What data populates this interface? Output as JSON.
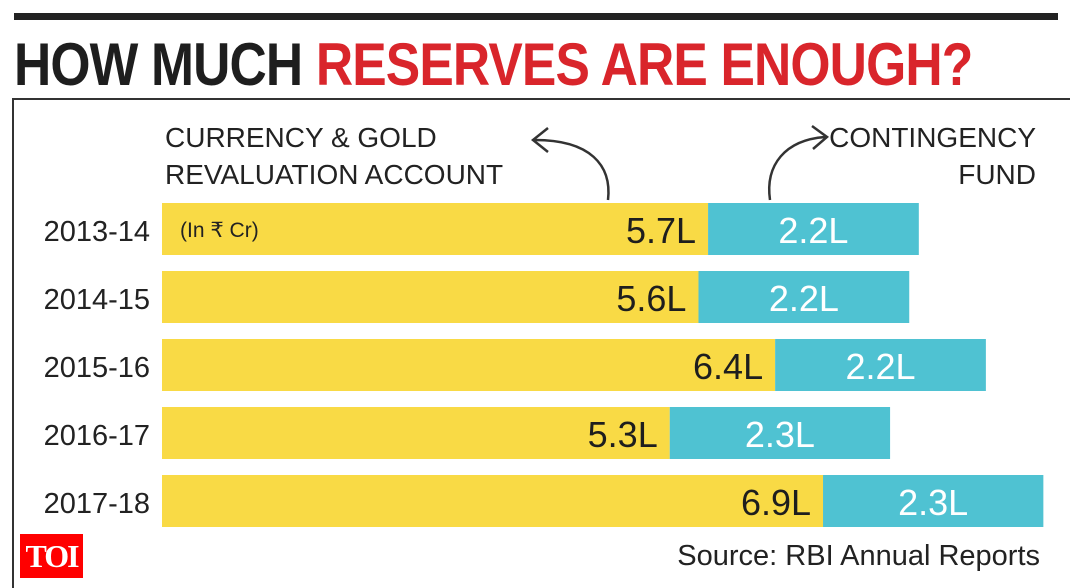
{
  "chart_data": {
    "type": "bar",
    "stacked": true,
    "orientation": "horizontal",
    "title": "HOW MUCH RESERVES ARE ENOUGH?",
    "title_parts": {
      "black": "HOW MUCH",
      "red": "RESERVES ARE ENOUGH?"
    },
    "unit_note": "(In ₹ Cr)",
    "categories": [
      "2013-14",
      "2014-15",
      "2015-16",
      "2016-17",
      "2017-18"
    ],
    "series": [
      {
        "name": "CURRENCY & GOLD REVALUATION ACCOUNT",
        "name_lines": [
          "CURRENCY & GOLD",
          "REVALUATION ACCOUNT"
        ],
        "values": [
          5.7,
          5.6,
          6.4,
          5.3,
          6.9
        ],
        "labels": [
          "5.7L",
          "5.6L",
          "6.4L",
          "5.3L",
          "6.9L"
        ],
        "color": "#f9da45"
      },
      {
        "name": "CONTINGENCY FUND",
        "name_lines": [
          "CONTINGENCY",
          "FUND"
        ],
        "values": [
          2.2,
          2.2,
          2.2,
          2.3,
          2.3
        ],
        "labels": [
          "2.2L",
          "2.2L",
          "2.2L",
          "2.3L",
          "2.3L"
        ],
        "color": "#4fc2d2"
      }
    ],
    "source": "Source: RBI Annual Reports",
    "grid": false
  },
  "watermark": "TOI",
  "colors": {
    "title_red": "#d9252b",
    "text": "#222222"
  }
}
